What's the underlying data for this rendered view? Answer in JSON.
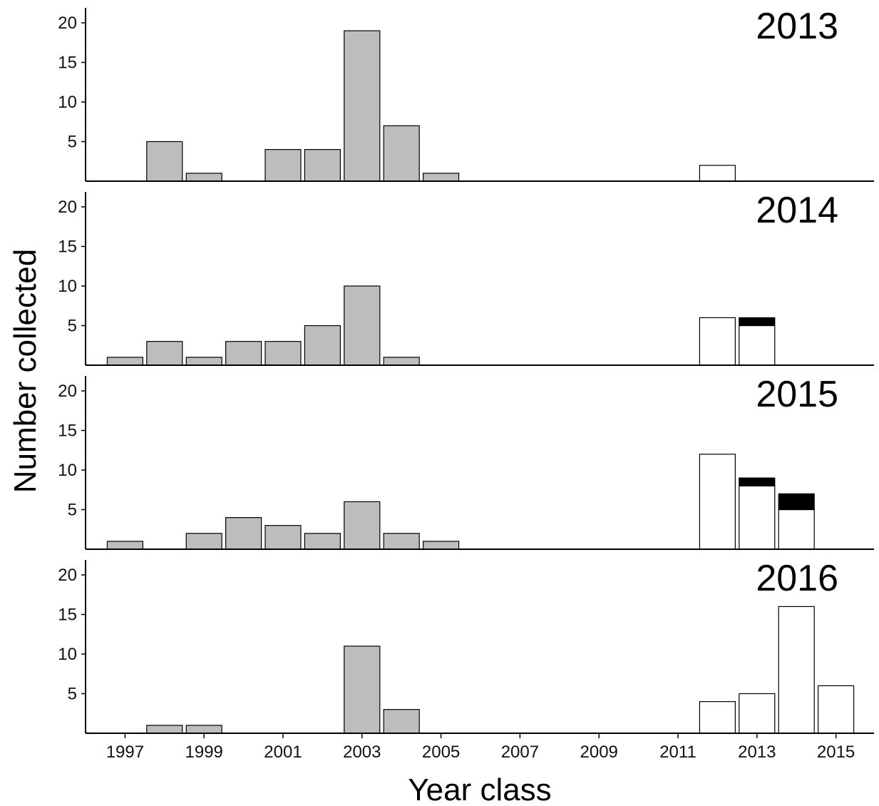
{
  "chart_data": {
    "type": "bar",
    "layout": "stacked-facets",
    "xlabel": "Year class",
    "ylabel": "Number collected",
    "ylim": [
      0,
      22
    ],
    "y_ticks": [
      5,
      10,
      15,
      20
    ],
    "x_ticks": [
      1997,
      1999,
      2001,
      2003,
      2005,
      2007,
      2009,
      2011,
      2013,
      2015
    ],
    "xlim": [
      1996,
      2016
    ],
    "colors": {
      "grey": "#bdbdbd",
      "white": "#ffffff",
      "black": "#000000",
      "outline": "#000000"
    },
    "panels": [
      {
        "title": "2013",
        "bars": [
          {
            "x": 1998,
            "segments": [
              {
                "fill": "grey",
                "value": 5
              }
            ]
          },
          {
            "x": 1999,
            "segments": [
              {
                "fill": "grey",
                "value": 1
              }
            ]
          },
          {
            "x": 2001,
            "segments": [
              {
                "fill": "grey",
                "value": 4
              }
            ]
          },
          {
            "x": 2002,
            "segments": [
              {
                "fill": "grey",
                "value": 4
              }
            ]
          },
          {
            "x": 2003,
            "segments": [
              {
                "fill": "grey",
                "value": 19
              }
            ]
          },
          {
            "x": 2004,
            "segments": [
              {
                "fill": "grey",
                "value": 7
              }
            ]
          },
          {
            "x": 2005,
            "segments": [
              {
                "fill": "grey",
                "value": 1
              }
            ]
          },
          {
            "x": 2012,
            "segments": [
              {
                "fill": "white",
                "value": 2
              }
            ]
          }
        ]
      },
      {
        "title": "2014",
        "bars": [
          {
            "x": 1997,
            "segments": [
              {
                "fill": "grey",
                "value": 1
              }
            ]
          },
          {
            "x": 1998,
            "segments": [
              {
                "fill": "grey",
                "value": 3
              }
            ]
          },
          {
            "x": 1999,
            "segments": [
              {
                "fill": "grey",
                "value": 1
              }
            ]
          },
          {
            "x": 2000,
            "segments": [
              {
                "fill": "grey",
                "value": 3
              }
            ]
          },
          {
            "x": 2001,
            "segments": [
              {
                "fill": "grey",
                "value": 3
              }
            ]
          },
          {
            "x": 2002,
            "segments": [
              {
                "fill": "grey",
                "value": 5
              }
            ]
          },
          {
            "x": 2003,
            "segments": [
              {
                "fill": "grey",
                "value": 10
              }
            ]
          },
          {
            "x": 2004,
            "segments": [
              {
                "fill": "grey",
                "value": 1
              }
            ]
          },
          {
            "x": 2012,
            "segments": [
              {
                "fill": "white",
                "value": 6
              }
            ]
          },
          {
            "x": 2013,
            "segments": [
              {
                "fill": "white",
                "value": 5
              },
              {
                "fill": "black",
                "value": 1
              }
            ]
          }
        ]
      },
      {
        "title": "2015",
        "bars": [
          {
            "x": 1997,
            "segments": [
              {
                "fill": "grey",
                "value": 1
              }
            ]
          },
          {
            "x": 1999,
            "segments": [
              {
                "fill": "grey",
                "value": 2
              }
            ]
          },
          {
            "x": 2000,
            "segments": [
              {
                "fill": "grey",
                "value": 4
              }
            ]
          },
          {
            "x": 2001,
            "segments": [
              {
                "fill": "grey",
                "value": 3
              }
            ]
          },
          {
            "x": 2002,
            "segments": [
              {
                "fill": "grey",
                "value": 2
              }
            ]
          },
          {
            "x": 2003,
            "segments": [
              {
                "fill": "grey",
                "value": 6
              }
            ]
          },
          {
            "x": 2004,
            "segments": [
              {
                "fill": "grey",
                "value": 2
              }
            ]
          },
          {
            "x": 2005,
            "segments": [
              {
                "fill": "grey",
                "value": 1
              }
            ]
          },
          {
            "x": 2012,
            "segments": [
              {
                "fill": "white",
                "value": 12
              }
            ]
          },
          {
            "x": 2013,
            "segments": [
              {
                "fill": "white",
                "value": 8
              },
              {
                "fill": "black",
                "value": 1
              }
            ]
          },
          {
            "x": 2014,
            "segments": [
              {
                "fill": "white",
                "value": 5
              },
              {
                "fill": "black",
                "value": 2
              }
            ]
          }
        ]
      },
      {
        "title": "2016",
        "bars": [
          {
            "x": 1998,
            "segments": [
              {
                "fill": "grey",
                "value": 1
              }
            ]
          },
          {
            "x": 1999,
            "segments": [
              {
                "fill": "grey",
                "value": 1
              }
            ]
          },
          {
            "x": 2003,
            "segments": [
              {
                "fill": "grey",
                "value": 11
              }
            ]
          },
          {
            "x": 2004,
            "segments": [
              {
                "fill": "grey",
                "value": 3
              }
            ]
          },
          {
            "x": 2012,
            "segments": [
              {
                "fill": "white",
                "value": 4
              }
            ]
          },
          {
            "x": 2013,
            "segments": [
              {
                "fill": "white",
                "value": 5
              }
            ]
          },
          {
            "x": 2014,
            "segments": [
              {
                "fill": "white",
                "value": 16
              }
            ]
          },
          {
            "x": 2015,
            "segments": [
              {
                "fill": "white",
                "value": 6
              }
            ]
          }
        ]
      }
    ]
  }
}
